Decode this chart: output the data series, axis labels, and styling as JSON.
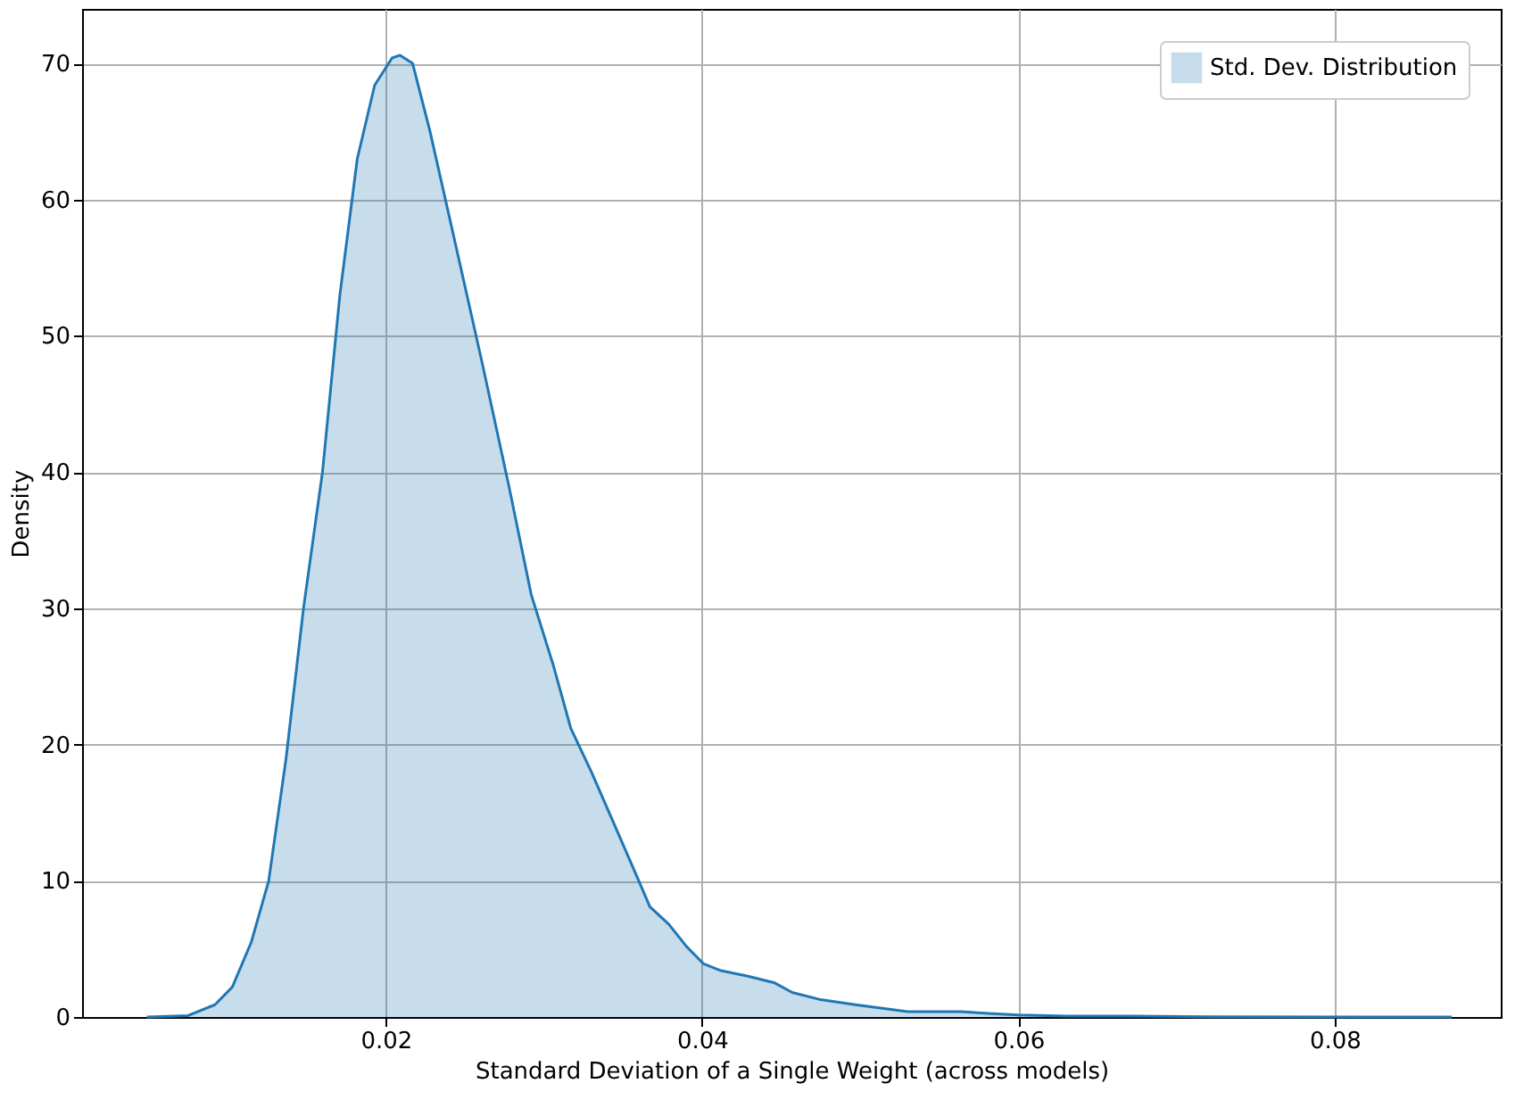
{
  "chart_data": {
    "type": "area",
    "xlabel": "Standard Deviation of a Single Weight (across models)",
    "ylabel": "Density",
    "xlim": [
      0.0008,
      0.0905
    ],
    "xticks": [
      0.02,
      0.04,
      0.06,
      0.08
    ],
    "ylim": [
      0,
      74
    ],
    "yticks": [
      0,
      10,
      20,
      30,
      40,
      50,
      60,
      70
    ],
    "grid": true,
    "legend": "top right",
    "series": [
      {
        "name": "Std. Dev. Distribution",
        "color": "#1f77b4",
        "x": [
          0.0049,
          0.0075,
          0.0092,
          0.0103,
          0.0115,
          0.0126,
          0.0137,
          0.0148,
          0.016,
          0.0171,
          0.0182,
          0.0193,
          0.0204,
          0.0209,
          0.0217,
          0.0228,
          0.0243,
          0.0261,
          0.0278,
          0.0292,
          0.0306,
          0.0317,
          0.033,
          0.0345,
          0.036,
          0.0367,
          0.0379,
          0.039,
          0.0401,
          0.0412,
          0.0429,
          0.0446,
          0.0457,
          0.0474,
          0.0497,
          0.0513,
          0.053,
          0.0564,
          0.0581,
          0.06,
          0.0631,
          0.0671,
          0.0721,
          0.0874
        ],
        "values": [
          0,
          0.1,
          0.9,
          2.2,
          5.5,
          10,
          19,
          30,
          40,
          53,
          63,
          68.4,
          70.4,
          70.6,
          70,
          65,
          57.3,
          48,
          38.9,
          31,
          25.8,
          21.2,
          18,
          14,
          10,
          8.1,
          6.8,
          5.2,
          3.9,
          3.4,
          3.0,
          2.5,
          1.8,
          1.3,
          0.9,
          0.65,
          0.4,
          0.4,
          0.26,
          0.15,
          0.07,
          0.07,
          0.02,
          0
        ]
      }
    ]
  }
}
